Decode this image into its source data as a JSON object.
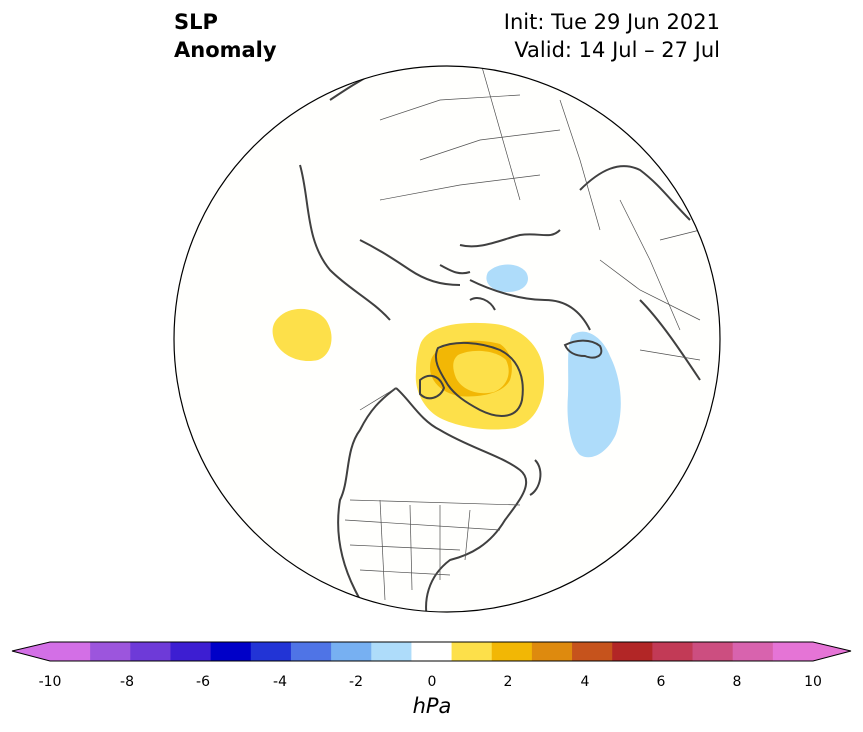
{
  "title": {
    "left_line1": "SLP",
    "left_line2": "Anomaly",
    "right_line1": "Init: Tue 29 Jun 2021",
    "right_line2": "Valid: 14 Jul – 27 Jul"
  },
  "colorbar": {
    "units": "hPa",
    "ticks": [
      "-10",
      "-8",
      "-6",
      "-4",
      "-2",
      "0",
      "2",
      "4",
      "6",
      "8",
      "10"
    ],
    "levels": [
      -10,
      -9,
      -8,
      -7,
      -6,
      -5,
      -4,
      -3,
      -2,
      -1,
      1,
      2,
      3,
      4,
      5,
      6,
      7,
      8,
      9,
      10
    ],
    "colors": [
      "#d36fe6",
      "#9c55dd",
      "#6e3ad8",
      "#3d1ed2",
      "#0000c8",
      "#2234d6",
      "#4f74e6",
      "#77b0f2",
      "#aedcfa",
      "#ffffff",
      "#fde04a",
      "#f2b705",
      "#de8a0e",
      "#c6531c",
      "#b22626",
      "#c23a56",
      "#cc4e80",
      "#d863ae",
      "#e574d6"
    ]
  },
  "map": {
    "projection": "north-polar-stereographic",
    "anomalies": [
      {
        "name": "greenland-positive",
        "sign": "positive",
        "max_hpa": 3
      },
      {
        "name": "alaska-positive",
        "sign": "positive",
        "max_hpa": 2
      },
      {
        "name": "europe-negative",
        "sign": "negative",
        "min_hpa": -2
      },
      {
        "name": "siberia-negative",
        "sign": "negative",
        "min_hpa": -2
      }
    ]
  }
}
